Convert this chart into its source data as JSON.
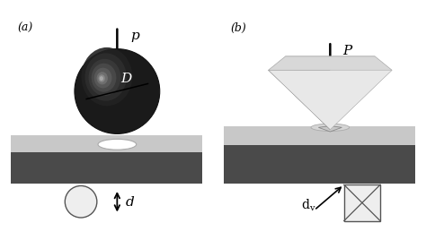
{
  "bg_color": "#ffffff",
  "dark_gray": "#4a4a4a",
  "surface_gray": "#c8c8c8",
  "surface_edge": "#b0b0b0",
  "ball_dark": "#1a1a1a",
  "ball_mid": "#555555",
  "ball_light": "#999999",
  "text_color": "#000000",
  "label_a": "(a)",
  "label_b": "(b)",
  "label_P_left": "p",
  "label_P_right": "P",
  "label_D": "D",
  "label_d": "d",
  "label_dv": "d",
  "arrow_lw": 1.5,
  "plate_top": "#d8d8d8",
  "plate_left": "#888888",
  "plate_right": "#e8e8e8",
  "plate_front": "#f0f0f0",
  "indentation_fill": "#d0d0d0"
}
